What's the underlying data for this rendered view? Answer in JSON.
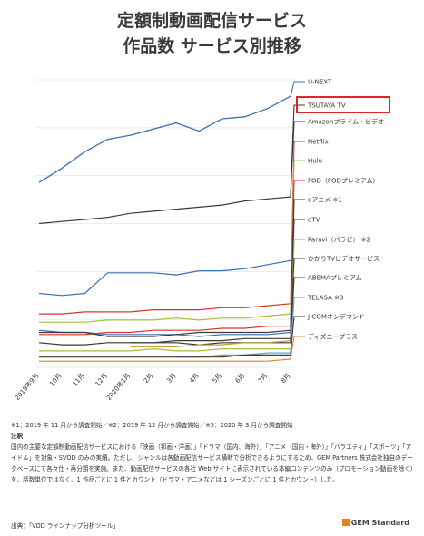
{
  "header": {
    "title_line1": "定額制動画配信サービス",
    "title_line2": "作品数 サービス別推移"
  },
  "chart_data": {
    "type": "line",
    "x": [
      "2019年9月",
      "10月",
      "11月",
      "12月",
      "2020年1月",
      "2月",
      "3月",
      "4月",
      "5月",
      "6月",
      "7月",
      "8月"
    ],
    "series": [
      {
        "name": "U-NEXT",
        "color": "#3b6fb6",
        "values": [
          135,
          142,
          150,
          156,
          158,
          161,
          164,
          160,
          166,
          167,
          171,
          177
        ]
      },
      {
        "name": "TSUTAYA TV",
        "color": "#3a3a3a",
        "values": [
          null,
          null,
          null,
          null,
          null,
          null,
          null,
          null,
          null,
          null,
          null,
          183
        ]
      },
      {
        "name": "Amazonプライム・ビデオ",
        "color": "#3a3a3a",
        "values": [
          null,
          null,
          null,
          null,
          null,
          null,
          null,
          null,
          null,
          null,
          null,
          176
        ]
      },
      {
        "name": "Netflix",
        "color": "#d9342b",
        "values": [
          null,
          null,
          null,
          null,
          null,
          null,
          null,
          null,
          null,
          null,
          null,
          168
        ]
      },
      {
        "name": "Hulu",
        "color": "#a6bf3a",
        "values": [
          null,
          null,
          null,
          null,
          null,
          null,
          null,
          null,
          null,
          null,
          null,
          160
        ]
      },
      {
        "name": "FOD（FODプレミアム）",
        "color": "#d9342b",
        "values": [
          null,
          null,
          null,
          null,
          null,
          null,
          null,
          null,
          null,
          null,
          null,
          152
        ]
      },
      {
        "name": "dアニメ ※1",
        "color": "#3a3a3a",
        "values": [
          null,
          null,
          null,
          null,
          null,
          null,
          null,
          null,
          null,
          null,
          null,
          144
        ]
      },
      {
        "name": "dTV",
        "color": "#3a3a3a",
        "values": [
          null,
          null,
          null,
          null,
          null,
          null,
          null,
          null,
          null,
          null,
          null,
          136
        ]
      },
      {
        "name": "Paravi（パラビ） ※2",
        "color": "#c8a03a",
        "values": [
          null,
          null,
          null,
          null,
          null,
          null,
          null,
          null,
          null,
          null,
          null,
          128
        ]
      },
      {
        "name": "ひかりTVビデオサービス",
        "color": "#3a3a3a",
        "values": [
          null,
          null,
          null,
          null,
          null,
          null,
          null,
          null,
          null,
          null,
          null,
          120
        ]
      },
      {
        "name": "ABEMAプレミアム",
        "color": "#3a3a3a",
        "values": [
          null,
          null,
          null,
          null,
          null,
          null,
          null,
          null,
          null,
          null,
          null,
          112
        ]
      },
      {
        "name": "TELASA ※3",
        "color": "#5fa3d6",
        "values": [
          null,
          null,
          null,
          null,
          null,
          null,
          null,
          null,
          null,
          null,
          null,
          103
        ]
      },
      {
        "name": "J:COMオンデマンド",
        "color": "#3a3a3a",
        "values": [
          null,
          null,
          null,
          null,
          null,
          null,
          null,
          null,
          null,
          null,
          null,
          94
        ]
      },
      {
        "name": "ディズニープラス",
        "color": "#e8821e",
        "values": [
          null,
          null,
          null,
          null,
          null,
          null,
          null,
          null,
          null,
          null,
          null,
          85
        ]
      }
    ],
    "background_lines": [
      {
        "color": "#3b6fb6",
        "values": [
          81,
          80,
          81,
          91,
          91,
          91,
          90,
          92,
          92,
          93,
          95,
          97
        ]
      },
      {
        "color": "#3a3a3a",
        "values": [
          115,
          116,
          117,
          118,
          120,
          121,
          122,
          123,
          124,
          126,
          127,
          128
        ]
      },
      {
        "color": "#d9342b",
        "values": [
          71,
          71,
          72,
          72,
          72,
          73,
          73,
          73,
          74,
          74,
          75,
          76
        ]
      },
      {
        "color": "#a6bf3a",
        "values": [
          67,
          67,
          67,
          68,
          68,
          68,
          69,
          68,
          69,
          69,
          70,
          71
        ]
      },
      {
        "color": "#3b6fb6",
        "values": [
          63,
          62,
          62,
          61,
          61,
          61,
          61,
          60,
          61,
          61,
          61,
          62
        ]
      },
      {
        "color": "#d9342b",
        "values": [
          61,
          61,
          61,
          62,
          62,
          63,
          63,
          63,
          64,
          64,
          65,
          65
        ]
      },
      {
        "color": "#3a3a3a",
        "values": [
          62,
          62,
          62,
          60,
          60,
          60,
          61,
          62,
          62,
          62,
          62,
          63
        ]
      },
      {
        "color": "#3a3a3a",
        "values": [
          null,
          null,
          null,
          null,
          57,
          57,
          58,
          58,
          58,
          59,
          59,
          59
        ]
      },
      {
        "color": "#3a3a3a",
        "values": [
          57,
          56,
          56,
          57,
          57,
          57,
          57,
          56,
          57,
          57,
          57,
          57
        ]
      },
      {
        "color": "#c8a03a",
        "values": [
          null,
          null,
          null,
          null,
          55,
          55,
          55,
          56,
          56,
          57,
          57,
          58
        ]
      },
      {
        "color": "#a6bf3a",
        "values": [
          53,
          53,
          53,
          53,
          53,
          54,
          53,
          53,
          54,
          54,
          54,
          54
        ]
      },
      {
        "color": "#5fa3d6",
        "values": [
          null,
          null,
          null,
          null,
          null,
          null,
          50,
          50,
          51,
          51,
          52,
          52
        ]
      },
      {
        "color": "#3a3a3a",
        "values": [
          50,
          50,
          50,
          50,
          50,
          50,
          50,
          50,
          50,
          51,
          51,
          51
        ]
      },
      {
        "color": "#e8821e",
        "values": [
          48,
          48,
          48,
          48,
          48,
          48,
          48,
          48,
          48,
          48,
          48,
          49
        ]
      }
    ],
    "ylim": [
      45,
      185
    ],
    "grid": "horizontal",
    "legend": "right"
  },
  "highlight": {
    "label": "TSUTAYA TV",
    "color": "#e0242a"
  },
  "notes": {
    "footnote": "※1：2019 年 11 月から調査開始／※2：2019 年 12 月から調査開始／※3：2020 年 3 月から調査開始",
    "heading": "注釈",
    "body": "国内の主要な定額制動画配信サービスにおける「映画（邦画・洋画）」「ドラマ（国内、海外）」「アニメ（国内・海外）」「バラエティ」「スポーツ」「アイドル」を対象・SVOD のみの実績。ただし、ジャンルは各動画配信サービス横断で分析できるようにするため、GEM Partners 株式会社独自のデータベースにて各々仕・再分類を実施。また、動画配信サービスの各社 Web サイトに表示されている本編コンテンツのみ（プロモーション動画を除く）を、話数単位ではなく、1 作品ごとに 1 件とカウント（ドラマ・アニメなどは 1 シーズンごとに 1 件とカウント）した。",
    "source": "出典：「VOD ラインナップ分析ツール」",
    "logo": "GEM Standard"
  }
}
